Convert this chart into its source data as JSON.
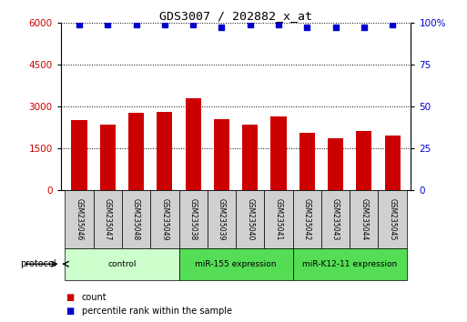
{
  "title": "GDS3007 / 202882_x_at",
  "samples": [
    "GSM235046",
    "GSM235047",
    "GSM235048",
    "GSM235049",
    "GSM235038",
    "GSM235039",
    "GSM235040",
    "GSM235041",
    "GSM235042",
    "GSM235043",
    "GSM235044",
    "GSM235045"
  ],
  "counts": [
    2500,
    2350,
    2750,
    2800,
    3300,
    2550,
    2350,
    2650,
    2050,
    1850,
    2100,
    1950
  ],
  "percentile_ranks": [
    99,
    99,
    99,
    99,
    99,
    97,
    99,
    99,
    97,
    97,
    97,
    99
  ],
  "bar_color": "#cc0000",
  "percentile_color": "#0000cc",
  "ylim_left": [
    0,
    6000
  ],
  "ylim_right": [
    0,
    100
  ],
  "yticks_left": [
    0,
    1500,
    3000,
    4500,
    6000
  ],
  "yticks_right": [
    0,
    25,
    50,
    75,
    100
  ],
  "groups": [
    {
      "label": "control",
      "start": 0,
      "end": 4,
      "color": "#ccffcc"
    },
    {
      "label": "miR-155 expression",
      "start": 4,
      "end": 8,
      "color": "#55dd55"
    },
    {
      "label": "miR-K12-11 expression",
      "start": 8,
      "end": 12,
      "color": "#55dd55"
    }
  ],
  "sample_box_color": "#d0d0d0",
  "protocol_label": "protocol",
  "legend_count_label": "count",
  "legend_percentile_label": "percentile rank within the sample",
  "background_color": "#ffffff",
  "tick_label_color_left": "#cc0000",
  "tick_label_color_right": "#0000cc"
}
